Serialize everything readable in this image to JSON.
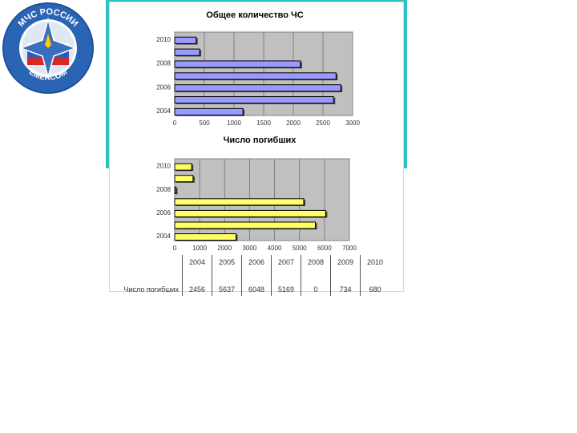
{
  "logo": {
    "top_text": "МЧС РОССИИ",
    "bottom_text": "EMERCOM",
    "colors": {
      "ring": "#2a64b4",
      "inner_ring": "#ffffff",
      "star": "#3a6fc0",
      "flag_white": "#ffffff",
      "flag_blue": "#2b5bc0",
      "flag_red": "#d62828"
    }
  },
  "colors": {
    "frame": "#2ec3c3",
    "plot_bg": "#c0c0c0",
    "grid": "#808080"
  },
  "chart_data": [
    {
      "type": "bar",
      "orientation": "horizontal",
      "title": "Общее количество ЧС",
      "categories": [
        "2004",
        "",
        "2006",
        "",
        "2008",
        "",
        "2010"
      ],
      "series": [
        {
          "values": [
            1150,
            2680,
            2800,
            2720,
            2120,
            420,
            360
          ],
          "color": "#9999ff"
        }
      ],
      "xlim": [
        0,
        3000
      ],
      "xticks": [
        "0",
        "500",
        "1000",
        "1500",
        "2000",
        "2500",
        "3000"
      ],
      "grid": true,
      "legend": "none"
    },
    {
      "type": "bar",
      "orientation": "horizontal",
      "title": "Число погибших",
      "categories": [
        "2004",
        "",
        "2006",
        "",
        "2008",
        "",
        "2010"
      ],
      "series": [
        {
          "name": "Число погибших",
          "values": [
            2456,
            5637,
            6048,
            5169,
            0,
            734,
            680
          ],
          "color": "#ffff66"
        }
      ],
      "xlim": [
        0,
        7000
      ],
      "xticks": [
        "0",
        "1000",
        "2000",
        "3000",
        "4000",
        "5000",
        "6000",
        "7000"
      ],
      "grid": true,
      "legend": "none"
    }
  ],
  "table": {
    "years": [
      "2004",
      "2005",
      "2006",
      "2007",
      "2008",
      "2009",
      "2010"
    ],
    "row_label": "Число погибших",
    "values": [
      "2456",
      "5637",
      "6048",
      "5169",
      "0",
      "734",
      "680"
    ]
  }
}
